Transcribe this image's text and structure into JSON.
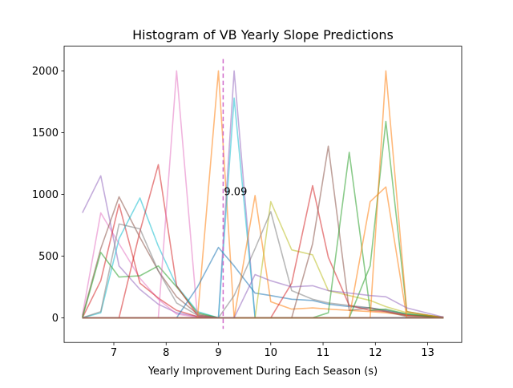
{
  "chart_data": {
    "type": "line",
    "title": "Histogram of VB Yearly Slope Predictions",
    "xlabel": "Yearly Improvement During Each Season (s)",
    "ylabel": "",
    "xlim": [
      6.05,
      13.65
    ],
    "ylim": [
      -200,
      2200
    ],
    "xticks": [
      7,
      8,
      9,
      10,
      11,
      12,
      13
    ],
    "yticks": [
      0,
      500,
      1000,
      1500,
      2000
    ],
    "grid": false,
    "annotation": {
      "text": "9.09",
      "x": 9.09,
      "y": 1000
    },
    "vline": {
      "x": 9.09,
      "color": "#cf69c9"
    },
    "series_color_cycle": [
      "#1f77b4",
      "#ff7f0e",
      "#2ca02c",
      "#d62728",
      "#9467bd",
      "#8c564b",
      "#e377c2",
      "#7f7f7f",
      "#bcbd22",
      "#17becf"
    ],
    "series": [
      {
        "color": "#9467bd",
        "x": [
          6.4,
          6.75,
          7.1,
          7.5,
          7.85,
          8.2,
          8.6,
          9.0,
          9.3,
          9.7,
          10.0,
          10.4,
          10.8,
          11.1,
          11.5,
          11.9,
          12.2,
          12.6,
          13.3
        ],
        "values": [
          850,
          1150,
          420,
          230,
          110,
          40,
          10,
          0,
          0,
          0,
          0,
          0,
          0,
          0,
          0,
          0,
          0,
          0,
          0
        ]
      },
      {
        "color": "#e377c2",
        "x": [
          6.4,
          6.75,
          7.1,
          7.5,
          7.85,
          8.2,
          8.6,
          9.0,
          9.3,
          9.7,
          10.0,
          10.4,
          10.8,
          11.1,
          11.5,
          11.9,
          12.2,
          12.6,
          13.3
        ],
        "values": [
          20,
          850,
          600,
          320,
          150,
          30,
          5,
          0,
          0,
          0,
          0,
          0,
          0,
          0,
          0,
          0,
          0,
          0,
          0
        ]
      },
      {
        "color": "#8c564b",
        "x": [
          6.4,
          6.75,
          7.1,
          7.5,
          7.85,
          8.2,
          8.6,
          9.0,
          9.3,
          9.7,
          10.0,
          10.4,
          10.8,
          11.1,
          11.5,
          11.9,
          12.2,
          12.6,
          13.3
        ],
        "values": [
          10,
          560,
          980,
          650,
          380,
          170,
          30,
          0,
          0,
          0,
          0,
          0,
          0,
          0,
          0,
          0,
          0,
          0,
          0
        ]
      },
      {
        "color": "#d62728",
        "x": [
          6.4,
          6.75,
          7.1,
          7.5,
          7.85,
          8.2,
          8.6,
          9.0,
          9.3,
          9.7,
          10.0,
          10.4,
          10.8,
          11.1,
          11.5,
          11.9,
          12.2,
          12.6,
          13.3
        ],
        "values": [
          0,
          300,
          920,
          280,
          160,
          60,
          10,
          0,
          0,
          0,
          0,
          0,
          0,
          0,
          0,
          0,
          0,
          0,
          0
        ]
      },
      {
        "color": "#17becf",
        "x": [
          6.4,
          6.75,
          7.1,
          7.5,
          7.85,
          8.2,
          8.6,
          9.0,
          9.3,
          9.7,
          10.0,
          10.4,
          10.8,
          11.1,
          11.5,
          11.9,
          12.2,
          12.6,
          13.3
        ],
        "values": [
          0,
          40,
          640,
          970,
          580,
          260,
          50,
          0,
          0,
          0,
          0,
          0,
          0,
          0,
          0,
          0,
          0,
          0,
          0
        ]
      },
      {
        "color": "#2ca02c",
        "x": [
          6.4,
          6.75,
          7.1,
          7.5,
          7.85,
          8.2,
          8.6,
          9.0,
          9.3,
          9.7,
          10.0,
          10.4,
          10.8,
          11.1,
          11.5,
          11.9,
          12.2,
          12.6,
          13.3
        ],
        "values": [
          0,
          530,
          330,
          340,
          420,
          250,
          40,
          0,
          0,
          0,
          0,
          0,
          0,
          0,
          0,
          0,
          0,
          0,
          0
        ]
      },
      {
        "color": "#d62728",
        "x": [
          6.4,
          6.75,
          7.1,
          7.5,
          7.85,
          8.2,
          8.6,
          9.0,
          9.3,
          9.7,
          10.0,
          10.4,
          10.8,
          11.1,
          11.5,
          11.9,
          12.2,
          12.6,
          13.3
        ],
        "values": [
          0,
          0,
          0,
          700,
          1240,
          260,
          20,
          0,
          0,
          0,
          0,
          0,
          0,
          0,
          0,
          0,
          0,
          0,
          0
        ]
      },
      {
        "color": "#e377c2",
        "x": [
          6.4,
          6.75,
          7.1,
          7.5,
          7.85,
          8.2,
          8.6,
          9.0,
          9.3,
          9.7,
          10.0,
          10.4,
          10.8,
          11.1,
          11.5,
          11.9,
          12.2,
          12.6,
          13.3
        ],
        "values": [
          0,
          0,
          0,
          0,
          0,
          2000,
          0,
          0,
          0,
          0,
          0,
          0,
          0,
          0,
          0,
          0,
          0,
          0,
          0
        ]
      },
      {
        "color": "#ff7f0e",
        "x": [
          6.4,
          6.75,
          7.1,
          7.5,
          7.85,
          8.2,
          8.6,
          9.0,
          9.3,
          9.7,
          10.0,
          10.4,
          10.8,
          11.1,
          11.5,
          11.9,
          12.2,
          12.6,
          13.3
        ],
        "values": [
          0,
          0,
          0,
          0,
          0,
          0,
          0,
          2000,
          0,
          0,
          0,
          0,
          0,
          0,
          0,
          0,
          0,
          0,
          0
        ]
      },
      {
        "color": "#9467bd",
        "x": [
          6.4,
          6.75,
          7.1,
          7.5,
          7.85,
          8.2,
          8.6,
          9.0,
          9.3,
          9.7,
          10.0,
          10.4,
          10.8,
          11.1,
          11.5,
          11.9,
          12.2,
          12.6,
          13.3
        ],
        "values": [
          0,
          0,
          0,
          0,
          0,
          0,
          0,
          0,
          2000,
          0,
          0,
          0,
          0,
          0,
          0,
          0,
          0,
          0,
          0
        ]
      },
      {
        "color": "#17becf",
        "x": [
          6.4,
          6.75,
          7.1,
          7.5,
          7.85,
          8.2,
          8.6,
          9.0,
          9.3,
          9.7,
          10.0,
          10.4,
          10.8,
          11.1,
          11.5,
          11.9,
          12.2,
          12.6,
          13.3
        ],
        "values": [
          0,
          0,
          0,
          0,
          0,
          0,
          0,
          0,
          1780,
          0,
          0,
          0,
          0,
          0,
          0,
          0,
          0,
          0,
          0
        ]
      },
      {
        "color": "#1f77b4",
        "x": [
          6.4,
          6.75,
          7.1,
          7.5,
          7.85,
          8.2,
          8.6,
          9.0,
          9.3,
          9.7,
          10.0,
          10.4,
          10.8,
          11.1,
          11.5,
          11.9,
          12.2,
          12.6,
          13.3
        ],
        "values": [
          0,
          0,
          0,
          0,
          0,
          0,
          250,
          570,
          420,
          200,
          180,
          150,
          140,
          110,
          90,
          80,
          60,
          30,
          5
        ]
      },
      {
        "color": "#ff7f0e",
        "x": [
          6.4,
          6.75,
          7.1,
          7.5,
          7.85,
          8.2,
          8.6,
          9.0,
          9.3,
          9.7,
          10.0,
          10.4,
          10.8,
          11.1,
          11.5,
          11.9,
          12.2,
          12.6,
          13.3
        ],
        "values": [
          0,
          0,
          0,
          0,
          0,
          0,
          0,
          0,
          0,
          990,
          130,
          70,
          80,
          70,
          60,
          50,
          40,
          20,
          5
        ]
      },
      {
        "color": "#bcbd22",
        "x": [
          6.4,
          6.75,
          7.1,
          7.5,
          7.85,
          8.2,
          8.6,
          9.0,
          9.3,
          9.7,
          10.0,
          10.4,
          10.8,
          11.1,
          11.5,
          11.9,
          12.2,
          12.6,
          13.3
        ],
        "values": [
          0,
          0,
          0,
          0,
          0,
          0,
          0,
          0,
          0,
          0,
          940,
          550,
          510,
          220,
          180,
          140,
          90,
          40,
          5
        ]
      },
      {
        "color": "#7f7f7f",
        "x": [
          6.4,
          6.75,
          7.1,
          7.5,
          7.85,
          8.2,
          8.6,
          9.0,
          9.3,
          9.7,
          10.0,
          10.4,
          10.8,
          11.1,
          11.5,
          11.9,
          12.2,
          12.6,
          13.3
        ],
        "values": [
          0,
          0,
          0,
          0,
          0,
          0,
          0,
          0,
          180,
          560,
          860,
          220,
          150,
          120,
          100,
          80,
          60,
          20,
          5
        ]
      },
      {
        "color": "#d62728",
        "x": [
          6.4,
          6.75,
          7.1,
          7.5,
          7.85,
          8.2,
          8.6,
          9.0,
          9.3,
          9.7,
          10.0,
          10.4,
          10.8,
          11.1,
          11.5,
          11.9,
          12.2,
          12.6,
          13.3
        ],
        "values": [
          0,
          0,
          0,
          0,
          0,
          0,
          0,
          0,
          0,
          0,
          0,
          280,
          1070,
          490,
          100,
          60,
          50,
          20,
          5
        ]
      },
      {
        "color": "#8c564b",
        "x": [
          6.4,
          6.75,
          7.1,
          7.5,
          7.85,
          8.2,
          8.6,
          9.0,
          9.3,
          9.7,
          10.0,
          10.4,
          10.8,
          11.1,
          11.5,
          11.9,
          12.2,
          12.6,
          13.3
        ],
        "values": [
          0,
          0,
          0,
          0,
          0,
          0,
          0,
          0,
          0,
          0,
          0,
          0,
          600,
          1390,
          60,
          80,
          50,
          10,
          0
        ]
      },
      {
        "color": "#2ca02c",
        "x": [
          6.4,
          6.75,
          7.1,
          7.5,
          7.85,
          8.2,
          8.6,
          9.0,
          9.3,
          9.7,
          10.0,
          10.4,
          10.8,
          11.1,
          11.5,
          11.9,
          12.2,
          12.6,
          13.3
        ],
        "values": [
          0,
          0,
          0,
          0,
          0,
          0,
          0,
          0,
          0,
          0,
          0,
          0,
          0,
          40,
          1340,
          60,
          70,
          30,
          0
        ]
      },
      {
        "color": "#2ca02c",
        "x": [
          6.4,
          6.75,
          7.1,
          7.5,
          7.85,
          8.2,
          8.6,
          9.0,
          9.3,
          9.7,
          10.0,
          10.4,
          10.8,
          11.1,
          11.5,
          11.9,
          12.2,
          12.6,
          13.3
        ],
        "values": [
          0,
          0,
          0,
          0,
          0,
          0,
          0,
          0,
          0,
          0,
          0,
          0,
          0,
          0,
          0,
          420,
          1590,
          50,
          0
        ]
      },
      {
        "color": "#ff7f0e",
        "x": [
          6.4,
          6.75,
          7.1,
          7.5,
          7.85,
          8.2,
          8.6,
          9.0,
          9.3,
          9.7,
          10.0,
          10.4,
          10.8,
          11.1,
          11.5,
          11.9,
          12.2,
          12.6,
          13.3
        ],
        "values": [
          0,
          0,
          0,
          0,
          0,
          0,
          0,
          0,
          0,
          0,
          0,
          0,
          0,
          0,
          0,
          940,
          1060,
          0,
          0
        ]
      },
      {
        "color": "#ff7f0e",
        "x": [
          6.4,
          6.75,
          7.1,
          7.5,
          7.85,
          8.2,
          8.6,
          9.0,
          9.3,
          9.7,
          10.0,
          10.4,
          10.8,
          11.1,
          11.5,
          11.9,
          12.2,
          12.6,
          13.3
        ],
        "values": [
          0,
          0,
          0,
          0,
          0,
          0,
          0,
          0,
          0,
          0,
          0,
          0,
          0,
          0,
          0,
          0,
          2000,
          50,
          0
        ]
      },
      {
        "color": "#9467bd",
        "x": [
          6.4,
          6.75,
          7.1,
          7.5,
          7.85,
          8.2,
          8.6,
          9.0,
          9.3,
          9.7,
          10.0,
          10.4,
          10.8,
          11.1,
          11.5,
          11.9,
          12.2,
          12.6,
          13.3
        ],
        "values": [
          0,
          0,
          0,
          0,
          0,
          0,
          0,
          0,
          0,
          350,
          300,
          250,
          260,
          220,
          200,
          180,
          170,
          80,
          5
        ]
      },
      {
        "color": "#7f7f7f",
        "x": [
          6.4,
          6.75,
          7.1,
          7.5,
          7.85,
          8.2,
          8.6,
          9.0,
          9.3,
          9.7,
          10.0,
          10.4,
          10.8,
          11.1,
          11.5,
          11.9,
          12.2,
          12.6,
          13.3
        ],
        "values": [
          0,
          50,
          760,
          720,
          380,
          120,
          20,
          0,
          0,
          0,
          0,
          0,
          0,
          0,
          0,
          0,
          0,
          0,
          0
        ]
      },
      {
        "color": "#8c564b",
        "x": [
          6.4,
          6.75,
          7.1,
          7.5,
          7.85,
          8.2,
          8.6,
          9.0,
          9.3,
          9.7,
          10.0,
          10.4,
          10.8,
          11.1,
          11.5,
          11.9,
          12.2,
          12.6,
          13.3
        ],
        "values": [
          0,
          0,
          0,
          0,
          0,
          0,
          0,
          0,
          0,
          0,
          0,
          0,
          0,
          0,
          0,
          0,
          0,
          0,
          0
        ]
      }
    ]
  }
}
